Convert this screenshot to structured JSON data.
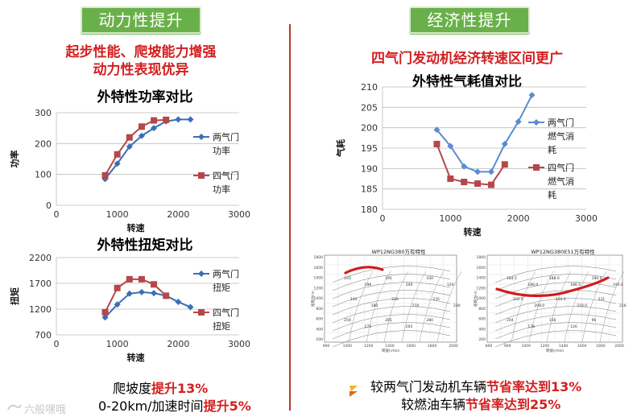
{
  "left": {
    "tab": "动力性提升",
    "headline_1": "起步性能、爬坡能力增强",
    "headline_2": "动力性表现优异",
    "footer": [
      {
        "pre": "爬坡度",
        "hl": "提升13%"
      },
      {
        "pre": "0-20km/加速时间",
        "hl": "提升5%"
      }
    ]
  },
  "right": {
    "tab": "经济性提升",
    "headline": "四气门发动机经济转速区间更广",
    "footer": [
      {
        "pre": "较两气门发动机车辆",
        "hl": "节省率达到13%"
      },
      {
        "pre": "较燃油车辆",
        "hl": "节省率达到25%"
      }
    ],
    "maps": [
      {
        "title": "WP12NG380万有特性",
        "ylabel": "扭矩/N·m",
        "xlabel": "转速/r/min",
        "yticks": [
          "1800",
          "1600",
          "1400",
          "1200",
          "1000",
          "800",
          "600",
          "400",
          "200"
        ],
        "xticks": [
          "900",
          "1000",
          "1200",
          "1400",
          "1600",
          "1800",
          "2000"
        ],
        "labels": [
          "193",
          "196",
          "195",
          "200",
          "100",
          "120",
          "140",
          "180",
          "220",
          "210",
          "235",
          "230",
          "250",
          "275",
          "265",
          "265",
          "280"
        ]
      },
      {
        "title": "WP12NG380E51万有特性",
        "ylabel": "扭矩/N·m",
        "xlabel": "转速/r/min",
        "yticks": [
          "1800",
          "1600",
          "1400",
          "1200",
          "1000",
          "800",
          "600",
          "400",
          "200"
        ],
        "xticks": [
          "800",
          "900",
          "1000",
          "1200",
          "1400",
          "1600",
          "1800",
          "2000"
        ],
        "labels": [
          "184.5",
          "186.0",
          "188.0",
          "186.5",
          "190.0",
          "195.0",
          "202.0",
          "208.0",
          "210.0",
          "218.0",
          "231",
          "216",
          "204",
          "178",
          "156",
          "126",
          "96"
        ]
      }
    ]
  },
  "watermark": "六般嘿哦",
  "colors": {
    "blue": "#3a6fb7",
    "red": "#b5474a",
    "tab_green": "#6ab04a",
    "accent_red": "#d21f1f",
    "divider": "#b33a2e"
  },
  "chart_data": [
    {
      "type": "line",
      "title": "外特性功率对比",
      "xlabel": "转速",
      "ylabel": "功率",
      "xlim": [
        0,
        3000
      ],
      "ylim": [
        0,
        300
      ],
      "xticks": [
        0,
        1000,
        2000,
        3000
      ],
      "yticks": [
        0,
        100,
        200,
        300
      ],
      "grid": true,
      "legend": "right",
      "series": [
        {
          "name": "两气门功率",
          "legend_lines": [
            "两气门",
            "功率"
          ],
          "color": "#3a6fb7",
          "marker": "diamond",
          "x": [
            800,
            1000,
            1200,
            1400,
            1600,
            1800,
            2000,
            2200
          ],
          "y": [
            85,
            135,
            190,
            225,
            250,
            272,
            278,
            278
          ]
        },
        {
          "name": "四气门功率",
          "legend_lines": [
            "四气门",
            "功率"
          ],
          "color": "#b5474a",
          "marker": "square",
          "x": [
            800,
            1000,
            1200,
            1400,
            1600,
            1800
          ],
          "y": [
            97,
            165,
            220,
            255,
            275,
            277
          ]
        }
      ]
    },
    {
      "type": "line",
      "title": "外特性扭矩对比",
      "xlabel": "转速",
      "ylabel": "扭矩",
      "xlim": [
        0,
        3000
      ],
      "ylim": [
        700,
        2200
      ],
      "xticks": [
        0,
        1000,
        2000,
        3000
      ],
      "yticks": [
        700,
        1200,
        1700,
        2200
      ],
      "grid": true,
      "legend": "right",
      "series": [
        {
          "name": "两气门扭矩",
          "legend_lines": [
            "两气门",
            "扭矩"
          ],
          "color": "#3a6fb7",
          "marker": "diamond",
          "x": [
            800,
            1000,
            1200,
            1400,
            1600,
            1800,
            2000,
            2200
          ],
          "y": [
            1040,
            1290,
            1500,
            1530,
            1510,
            1460,
            1340,
            1240
          ]
        },
        {
          "name": "四气门扭矩",
          "legend_lines": [
            "四气门",
            "扭矩"
          ],
          "color": "#b5474a",
          "marker": "square",
          "x": [
            800,
            1000,
            1200,
            1400,
            1600,
            1800
          ],
          "y": [
            1140,
            1610,
            1780,
            1780,
            1680,
            1460
          ]
        }
      ]
    },
    {
      "type": "line",
      "title": "外特性气耗值对比",
      "xlabel": "转速",
      "ylabel": "气耗",
      "xlim": [
        0,
        3000
      ],
      "ylim": [
        180,
        210
      ],
      "xticks": [
        0,
        1000,
        2000,
        3000
      ],
      "yticks": [
        180,
        185,
        190,
        195,
        200,
        205,
        210
      ],
      "grid": true,
      "legend": "right",
      "series": [
        {
          "name": "两气门燃气消耗",
          "legend_lines": [
            "两气门",
            "燃气消",
            "耗"
          ],
          "color": "#5b8bd0",
          "marker": "diamond",
          "x": [
            800,
            1000,
            1200,
            1400,
            1600,
            1800,
            2000,
            2200
          ],
          "y": [
            199.5,
            195.5,
            190.5,
            189.2,
            189.2,
            196.0,
            201.5,
            208.0
          ]
        },
        {
          "name": "四气门燃气消耗",
          "legend_lines": [
            "四气门",
            "燃气消",
            "耗"
          ],
          "color": "#b5474a",
          "marker": "square",
          "x": [
            800,
            1000,
            1200,
            1400,
            1600,
            1800
          ],
          "y": [
            196.0,
            187.5,
            186.7,
            186.3,
            186.0,
            191.0
          ]
        }
      ]
    }
  ]
}
